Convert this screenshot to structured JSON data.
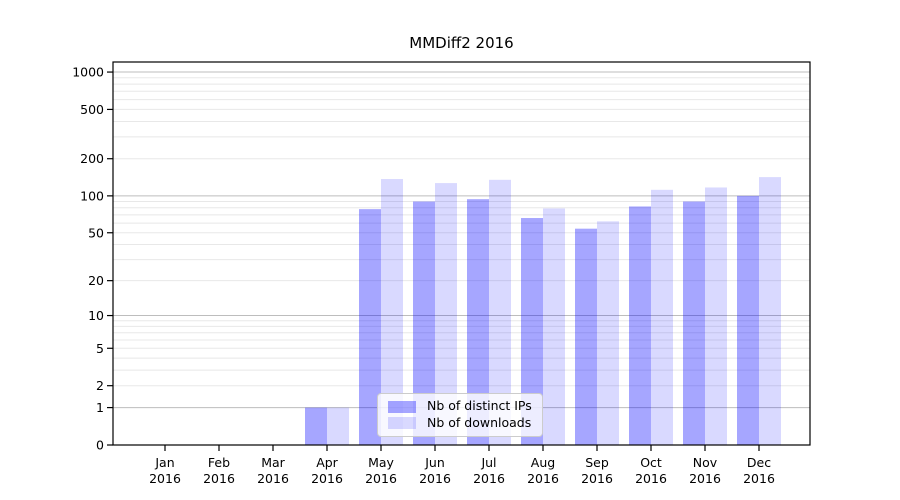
{
  "chart_data": {
    "type": "bar",
    "title": "MMDiff2 2016",
    "categories": [
      "Jan",
      "Feb",
      "Mar",
      "Apr",
      "May",
      "Jun",
      "Jul",
      "Aug",
      "Sep",
      "Oct",
      "Nov",
      "Dec"
    ],
    "year": "2016",
    "series": [
      {
        "name": "Nb of distinct IPs",
        "color": "#0000ff59",
        "values": [
          0,
          0,
          0,
          1,
          78,
          90,
          94,
          66,
          54,
          82,
          90,
          100
        ]
      },
      {
        "name": "Nb of downloads",
        "color": "#0000ff26",
        "values": [
          0,
          0,
          0,
          1,
          137,
          127,
          135,
          79,
          62,
          112,
          117,
          142
        ]
      }
    ],
    "yscale": "log1p",
    "yticks": [
      0,
      1,
      2,
      5,
      10,
      20,
      50,
      100,
      200,
      500,
      1000
    ],
    "ylim": [
      0,
      1205
    ],
    "grid": true,
    "grid_major_values": [
      1,
      10,
      100,
      1000
    ],
    "grid_major_color": "#bdbdbd",
    "grid_minor_color": "#e8e8e8",
    "axis_color": "#000000",
    "legend_position": "lower center"
  }
}
